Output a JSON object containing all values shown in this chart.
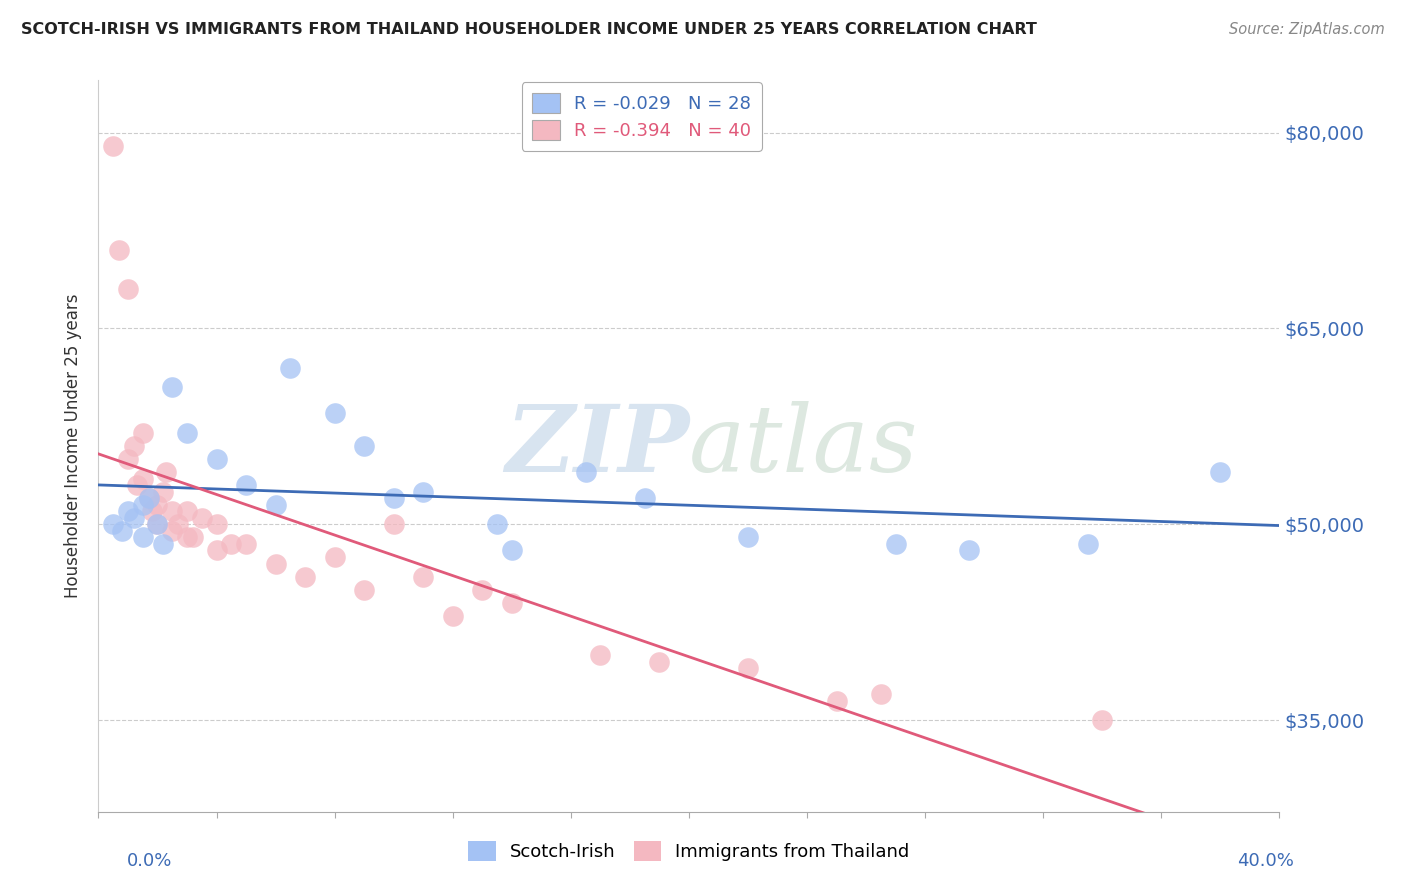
{
  "title": "SCOTCH-IRISH VS IMMIGRANTS FROM THAILAND HOUSEHOLDER INCOME UNDER 25 YEARS CORRELATION CHART",
  "source": "Source: ZipAtlas.com",
  "ylabel": "Householder Income Under 25 years",
  "xlim": [
    0.0,
    0.4
  ],
  "ylim": [
    28000,
    84000
  ],
  "yticks": [
    35000,
    50000,
    65000,
    80000
  ],
  "ytick_labels": [
    "$35,000",
    "$50,000",
    "$65,000",
    "$80,000"
  ],
  "legend_r1": "-0.029",
  "legend_n1": "28",
  "legend_r2": "-0.394",
  "legend_n2": "40",
  "color_blue": "#a4c2f4",
  "color_pink": "#f4b8c1",
  "color_blue_line": "#3d6bb5",
  "color_pink_line": "#e05a7a",
  "watermark_zip": "ZIP",
  "watermark_atlas": "atlas",
  "scotch_irish_x": [
    0.005,
    0.008,
    0.01,
    0.012,
    0.015,
    0.015,
    0.017,
    0.02,
    0.022,
    0.025,
    0.03,
    0.04,
    0.05,
    0.06,
    0.065,
    0.08,
    0.09,
    0.1,
    0.11,
    0.135,
    0.14,
    0.165,
    0.185,
    0.22,
    0.27,
    0.295,
    0.335,
    0.38
  ],
  "scotch_irish_y": [
    50000,
    49500,
    51000,
    50500,
    51500,
    49000,
    52000,
    50000,
    48500,
    60500,
    57000,
    55000,
    53000,
    51500,
    62000,
    58500,
    56000,
    52000,
    52500,
    50000,
    48000,
    54000,
    52000,
    49000,
    48500,
    48000,
    48500,
    54000
  ],
  "thailand_x": [
    0.005,
    0.007,
    0.01,
    0.01,
    0.012,
    0.013,
    0.015,
    0.015,
    0.017,
    0.018,
    0.02,
    0.02,
    0.022,
    0.023,
    0.025,
    0.025,
    0.027,
    0.03,
    0.03,
    0.032,
    0.035,
    0.04,
    0.04,
    0.045,
    0.05,
    0.06,
    0.07,
    0.08,
    0.09,
    0.1,
    0.11,
    0.12,
    0.13,
    0.14,
    0.17,
    0.19,
    0.22,
    0.25,
    0.265,
    0.34
  ],
  "thailand_y": [
    79000,
    71000,
    68000,
    55000,
    56000,
    53000,
    57000,
    53500,
    52000,
    51000,
    51500,
    50000,
    52500,
    54000,
    51000,
    49500,
    50000,
    51000,
    49000,
    49000,
    50500,
    50000,
    48000,
    48500,
    48500,
    47000,
    46000,
    47500,
    45000,
    50000,
    46000,
    43000,
    45000,
    44000,
    40000,
    39500,
    39000,
    36500,
    37000,
    35000
  ]
}
